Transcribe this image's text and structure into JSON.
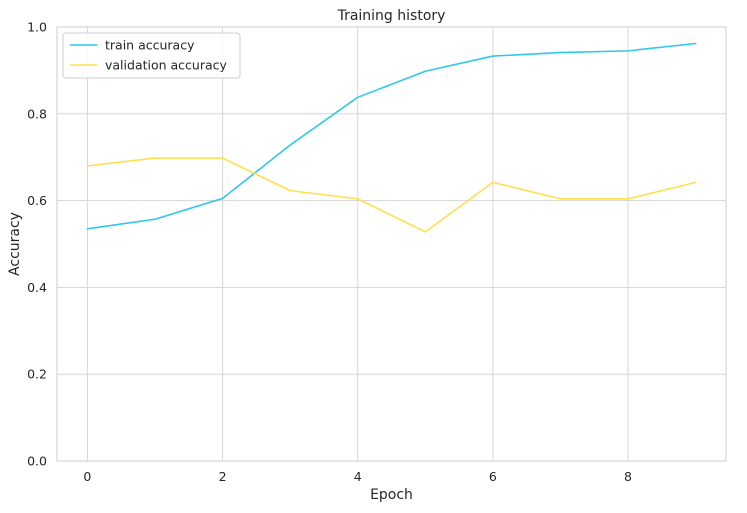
{
  "chart_data": {
    "type": "line",
    "title": "Training history",
    "xlabel": "Epoch",
    "ylabel": "Accuracy",
    "x": [
      0,
      1,
      2,
      3,
      4,
      5,
      6,
      7,
      8,
      9
    ],
    "xlim": [
      -0.45,
      9.45
    ],
    "ylim": [
      0.0,
      1.0
    ],
    "xticks": [
      0,
      2,
      4,
      6,
      8
    ],
    "yticks": [
      0.0,
      0.2,
      0.4,
      0.6,
      0.8,
      1.0
    ],
    "xtick_labels": [
      "0",
      "2",
      "4",
      "6",
      "8"
    ],
    "ytick_labels": [
      "0.0",
      "0.2",
      "0.4",
      "0.6",
      "0.8",
      "1.0"
    ],
    "grid": true,
    "legend_position": "top-left",
    "series": [
      {
        "name": "train accuracy",
        "color": "#2ec8ee",
        "values": [
          0.535,
          0.557,
          0.605,
          0.728,
          0.838,
          0.898,
          0.933,
          0.941,
          0.945,
          0.962
        ]
      },
      {
        "name": "validation accuracy",
        "color": "#ffe04b",
        "values": [
          0.68,
          0.698,
          0.698,
          0.623,
          0.604,
          0.528,
          0.642,
          0.604,
          0.604,
          0.642
        ]
      }
    ]
  }
}
